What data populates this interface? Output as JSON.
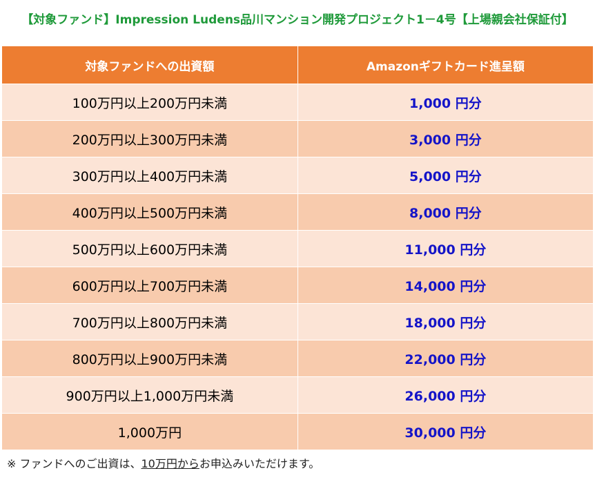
{
  "header": {
    "title": "【対象ファンド】Impression Ludens品川マンション開発プロジェクト1－4号【上場親会社保証付】"
  },
  "table": {
    "columns": [
      "対象ファンドへの出資額",
      "Amazonギフトカード進呈額"
    ],
    "rows": [
      [
        "100万円以上200万円未満",
        "1,000 円分"
      ],
      [
        "200万円以上300万円未満",
        "3,000 円分"
      ],
      [
        "300万円以上400万円未満",
        "5,000 円分"
      ],
      [
        "400万円以上500万円未満",
        "8,000 円分"
      ],
      [
        "500万円以上600万円未満",
        "11,000 円分"
      ],
      [
        "600万円以上700万円未満",
        "14,000 円分"
      ],
      [
        "700万円以上800万円未満",
        "18,000 円分"
      ],
      [
        "800万円以上900万円未満",
        "22,000 円分"
      ],
      [
        "900万円以上1,000万円未満",
        "26,000 円分"
      ],
      [
        "1,000万円",
        "30,000 円分"
      ]
    ]
  },
  "note": {
    "prefix": "※ ファンドへのご出資は、",
    "underlined": "10万円から",
    "suffix": "お申込みいただけます。"
  }
}
